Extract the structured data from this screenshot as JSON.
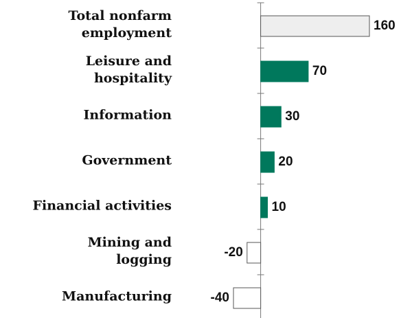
{
  "chart_data": {
    "type": "hbar",
    "categories": [
      "Total nonfarm\nemployment",
      "Leisure and\nhospitality",
      "Information",
      "Government",
      "Financial activities",
      "Mining and\nlogging",
      "Manufacturing"
    ],
    "values": [
      160,
      70,
      30,
      20,
      10,
      -20,
      -40
    ],
    "colors": [
      "#eeeeee",
      "#00785c",
      "#00785c",
      "#00785c",
      "#00785c",
      "#ffffff",
      "#ffffff"
    ],
    "xlim": [
      -40,
      160
    ]
  }
}
